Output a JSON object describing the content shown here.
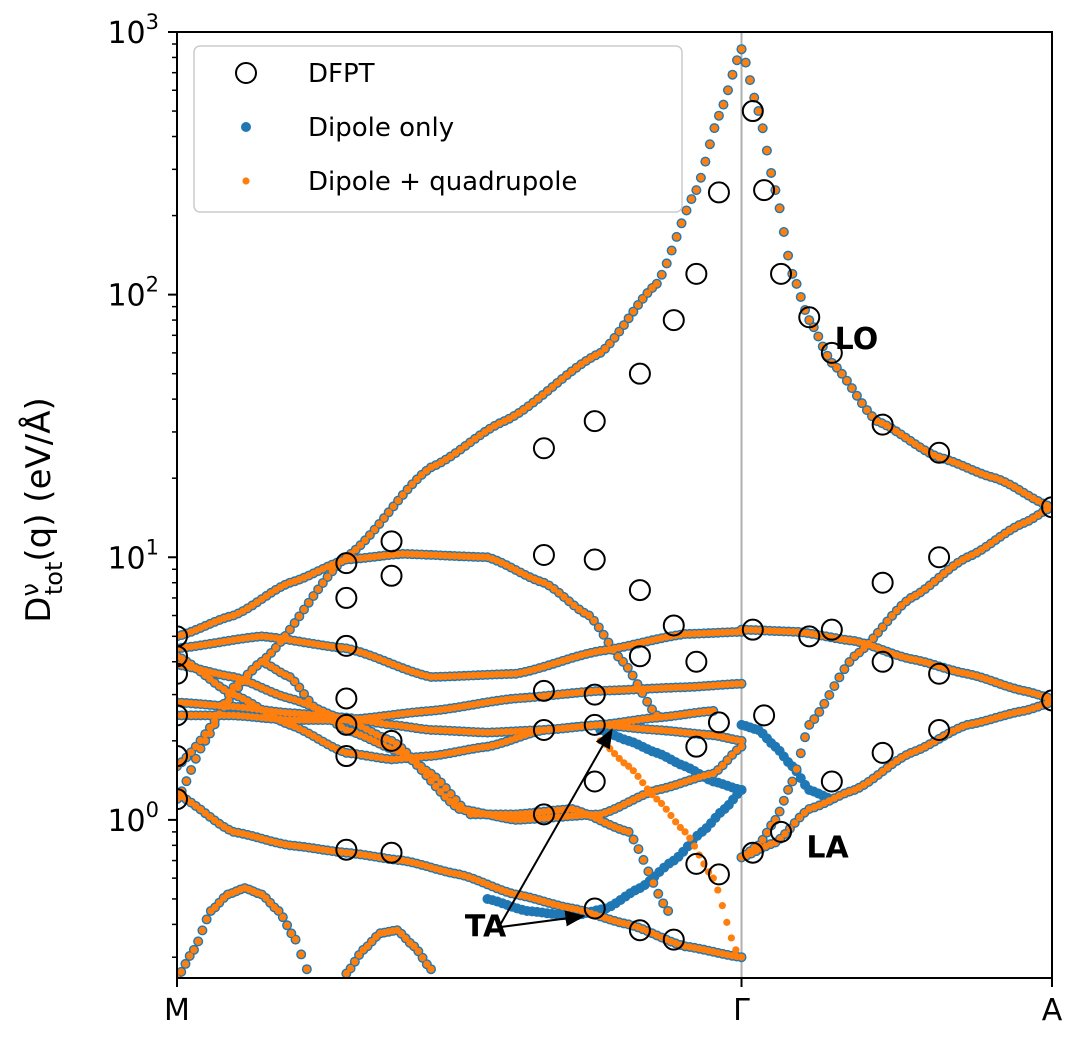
{
  "chart_data": {
    "type": "scatter",
    "ylabel": "D^ν_tot(q) (eV/Å)",
    "ylabel_parts": {
      "base": "D",
      "sup": "ν",
      "sub": "tot",
      "rest": "(q) (eV/Å)"
    },
    "yscale": "log",
    "ylim": [
      0.25,
      1000
    ],
    "xlim": [
      0,
      1.55
    ],
    "x_ticks": [
      {
        "value": 0,
        "label": "M"
      },
      {
        "value": 1.0,
        "label": "Γ"
      },
      {
        "value": 1.55,
        "label": "A"
      }
    ],
    "y_ticks": [
      {
        "value": 1,
        "base": "10",
        "exp": "0"
      },
      {
        "value": 10,
        "base": "10",
        "exp": "1"
      },
      {
        "value": 100,
        "base": "10",
        "exp": "2"
      },
      {
        "value": 1000,
        "base": "10",
        "exp": "3"
      }
    ],
    "vline_x": 1.0,
    "legend": [
      {
        "name": "DFPT",
        "marker": "open-circle",
        "color": "#000000"
      },
      {
        "name": "Dipole only",
        "marker": "dot",
        "color": "#1f77b4"
      },
      {
        "name": "Dipole + quadrupole",
        "marker": "dot",
        "color": "#ff7f0e"
      }
    ],
    "annotations": [
      {
        "text": "LO",
        "x": 1.165,
        "y": 62
      },
      {
        "text": "LA",
        "x": 1.115,
        "y": 0.72
      },
      {
        "text": "TA",
        "x": 0.51,
        "y": 0.36
      }
    ],
    "ta_arrow": {
      "from": [
        0.57,
        0.39
      ],
      "to_a": [
        0.77,
        2.2
      ],
      "to_b": [
        0.72,
        0.43
      ]
    },
    "branches": [
      {
        "name": "LO-MG",
        "x": [
          0.0,
          0.15,
          0.3,
          0.45,
          0.58,
          0.75,
          0.85,
          0.92,
          0.96,
          1.0
        ],
        "y": [
          1.6,
          4.0,
          10.0,
          22.0,
          33.0,
          60.0,
          110.0,
          250.0,
          480.0,
          860.0
        ]
      },
      {
        "name": "LO-GA",
        "x": [
          1.0,
          1.03,
          1.06,
          1.09,
          1.12,
          1.16,
          1.24,
          1.35,
          1.45,
          1.55
        ],
        "y": [
          860.0,
          500.0,
          250.0,
          120.0,
          80.0,
          55.0,
          33.0,
          24.0,
          20.0,
          15.5
        ]
      },
      {
        "name": "MG-b2",
        "x": [
          0.0,
          0.1,
          0.2,
          0.3,
          0.4,
          0.55,
          0.65,
          0.73,
          0.79,
          0.85
        ],
        "y": [
          5.0,
          6.0,
          8.0,
          9.8,
          10.3,
          10.0,
          8.0,
          6.0,
          4.0,
          2.5
        ]
      },
      {
        "name": "MG-b3",
        "x": [
          0.0,
          0.15,
          0.3,
          0.45,
          0.6,
          0.75,
          0.9,
          1.0
        ],
        "y": [
          4.5,
          5.0,
          4.5,
          3.5,
          3.6,
          4.4,
          5.1,
          5.2
        ]
      },
      {
        "name": "MG-b4",
        "x": [
          0.0,
          0.1,
          0.2,
          0.3,
          0.45,
          0.6,
          0.75,
          0.9,
          1.0
        ],
        "y": [
          2.5,
          2.5,
          2.4,
          2.4,
          2.6,
          2.9,
          3.1,
          3.2,
          3.3
        ]
      },
      {
        "name": "MG-b5",
        "x": [
          0.0,
          0.1,
          0.2,
          0.3,
          0.38,
          0.45,
          0.52,
          0.6,
          0.7,
          0.8,
          0.87
        ],
        "y": [
          3.9,
          3.5,
          2.9,
          2.4,
          2.0,
          1.5,
          1.05,
          1.05,
          1.1,
          0.9,
          0.45
        ]
      },
      {
        "name": "MG-b6",
        "x": [
          0.0,
          0.1,
          0.2,
          0.3,
          0.38,
          0.45,
          0.55,
          0.65,
          0.75,
          0.85,
          0.95,
          1.0
        ],
        "y": [
          4.2,
          3.0,
          2.3,
          1.8,
          1.7,
          1.75,
          1.9,
          2.2,
          2.3,
          2.2,
          2.1,
          2.0
        ]
      },
      {
        "name": "MG-b7",
        "x": [
          0.0,
          0.05,
          0.1,
          0.15,
          0.2,
          0.25,
          0.3,
          0.4,
          0.5,
          0.6,
          0.75,
          0.85,
          0.95,
          1.0
        ],
        "y": [
          1.2,
          2.0,
          3.2,
          4.0,
          3.5,
          2.6,
          2.2,
          1.8,
          1.1,
          1.0,
          1.05,
          1.3,
          1.5,
          1.9
        ]
      },
      {
        "name": "MG-b8",
        "x": [
          0.0,
          0.1,
          0.2,
          0.3,
          0.4,
          0.5,
          0.6,
          0.7,
          0.8,
          0.9,
          1.0
        ],
        "y": [
          1.25,
          0.9,
          0.8,
          0.75,
          0.7,
          0.62,
          0.52,
          0.46,
          0.4,
          0.33,
          0.3
        ]
      },
      {
        "name": "MG-b9",
        "x": [
          0.0,
          0.1,
          0.2,
          0.3,
          0.38,
          0.45,
          0.55,
          0.65,
          0.75,
          0.85,
          0.95
        ],
        "y": [
          2.8,
          2.7,
          2.55,
          2.45,
          2.3,
          2.2,
          2.15,
          2.2,
          2.3,
          2.45,
          2.6
        ]
      },
      {
        "name": "GA-b1",
        "x": [
          1.0,
          1.1,
          1.2,
          1.3,
          1.4,
          1.5,
          1.55
        ],
        "y": [
          5.3,
          5.2,
          4.8,
          4.1,
          3.6,
          3.1,
          2.9
        ]
      },
      {
        "name": "GA-b2",
        "x": [
          1.0,
          1.03,
          1.06,
          1.09,
          1.12,
          1.2,
          1.3,
          1.4,
          1.5,
          1.55
        ],
        "y": [
          0.72,
          0.8,
          1.0,
          1.4,
          2.3,
          4.2,
          7.0,
          10.0,
          13.5,
          15.5
        ]
      },
      {
        "name": "GA-b3",
        "x": [
          1.0,
          1.06,
          1.12,
          1.2,
          1.3,
          1.4,
          1.5,
          1.55
        ],
        "y": [
          0.72,
          0.82,
          1.1,
          1.3,
          1.8,
          2.3,
          2.6,
          2.8
        ]
      },
      {
        "name": "low-arch",
        "x": [
          0.0,
          0.03,
          0.06,
          0.09,
          0.12,
          0.15,
          0.18,
          0.21,
          0.23
        ],
        "y": [
          0.25,
          0.32,
          0.45,
          0.52,
          0.55,
          0.52,
          0.45,
          0.35,
          0.27
        ]
      },
      {
        "name": "low-arch2",
        "x": [
          0.3,
          0.33,
          0.36,
          0.39,
          0.42,
          0.45
        ],
        "y": [
          0.26,
          0.32,
          0.37,
          0.38,
          0.33,
          0.27
        ]
      }
    ],
    "dipole_only_divergent": [
      {
        "name": "TA-blue",
        "x": [
          0.55,
          0.62,
          0.7,
          0.76,
          0.82,
          0.88,
          0.93,
          0.97,
          1.0
        ],
        "y": [
          0.5,
          0.45,
          0.43,
          0.46,
          0.55,
          0.7,
          0.9,
          1.1,
          1.3
        ]
      },
      {
        "name": "TA-blue2",
        "x": [
          0.75,
          0.8,
          0.85,
          0.9,
          0.95,
          1.0
        ],
        "y": [
          2.2,
          2.0,
          1.8,
          1.6,
          1.4,
          1.3
        ]
      },
      {
        "name": "LA-blue",
        "x": [
          1.0,
          1.03,
          1.06,
          1.09,
          1.12,
          1.16
        ],
        "y": [
          2.3,
          2.2,
          1.9,
          1.6,
          1.3,
          1.2
        ]
      }
    ],
    "quadrupole_divergent": [
      {
        "name": "TA-orange",
        "x": [
          0.75,
          0.8,
          0.85,
          0.9,
          0.95,
          0.99
        ],
        "y": [
          2.0,
          1.6,
          1.2,
          0.9,
          0.6,
          0.32
        ]
      }
    ],
    "dfpt_points": [
      {
        "x": 0.0,
        "y": 5.0
      },
      {
        "x": 0.0,
        "y": 4.2
      },
      {
        "x": 0.0,
        "y": 3.6
      },
      {
        "x": 0.0,
        "y": 2.5
      },
      {
        "x": 0.0,
        "y": 1.75
      },
      {
        "x": 0.0,
        "y": 1.2
      },
      {
        "x": 0.3,
        "y": 9.5
      },
      {
        "x": 0.3,
        "y": 7.0
      },
      {
        "x": 0.3,
        "y": 4.6
      },
      {
        "x": 0.3,
        "y": 2.9
      },
      {
        "x": 0.3,
        "y": 2.3
      },
      {
        "x": 0.3,
        "y": 1.75
      },
      {
        "x": 0.3,
        "y": 0.77
      },
      {
        "x": 0.38,
        "y": 11.5
      },
      {
        "x": 0.38,
        "y": 8.5
      },
      {
        "x": 0.38,
        "y": 2.0
      },
      {
        "x": 0.38,
        "y": 0.75
      },
      {
        "x": 0.65,
        "y": 26.0
      },
      {
        "x": 0.65,
        "y": 10.2
      },
      {
        "x": 0.65,
        "y": 3.1
      },
      {
        "x": 0.65,
        "y": 2.2
      },
      {
        "x": 0.65,
        "y": 1.05
      },
      {
        "x": 0.74,
        "y": 33.0
      },
      {
        "x": 0.74,
        "y": 9.8
      },
      {
        "x": 0.74,
        "y": 3.0
      },
      {
        "x": 0.74,
        "y": 2.3
      },
      {
        "x": 0.74,
        "y": 1.4
      },
      {
        "x": 0.74,
        "y": 0.46
      },
      {
        "x": 0.82,
        "y": 50.0
      },
      {
        "x": 0.82,
        "y": 7.5
      },
      {
        "x": 0.82,
        "y": 4.2
      },
      {
        "x": 0.82,
        "y": 0.38
      },
      {
        "x": 0.88,
        "y": 80.0
      },
      {
        "x": 0.88,
        "y": 5.5
      },
      {
        "x": 0.88,
        "y": 0.35
      },
      {
        "x": 0.92,
        "y": 120.0
      },
      {
        "x": 0.92,
        "y": 4.0
      },
      {
        "x": 0.92,
        "y": 1.9
      },
      {
        "x": 0.92,
        "y": 0.68
      },
      {
        "x": 0.96,
        "y": 245.0
      },
      {
        "x": 0.96,
        "y": 2.35
      },
      {
        "x": 0.96,
        "y": 0.62
      },
      {
        "x": 1.02,
        "y": 500.0
      },
      {
        "x": 1.02,
        "y": 5.3
      },
      {
        "x": 1.02,
        "y": 0.75
      },
      {
        "x": 1.04,
        "y": 250.0
      },
      {
        "x": 1.04,
        "y": 2.5
      },
      {
        "x": 1.07,
        "y": 120.0
      },
      {
        "x": 1.07,
        "y": 0.9
      },
      {
        "x": 1.12,
        "y": 82.0
      },
      {
        "x": 1.12,
        "y": 5.0
      },
      {
        "x": 1.16,
        "y": 60.0
      },
      {
        "x": 1.16,
        "y": 5.3
      },
      {
        "x": 1.16,
        "y": 1.4
      },
      {
        "x": 1.25,
        "y": 32.0
      },
      {
        "x": 1.25,
        "y": 8.0
      },
      {
        "x": 1.25,
        "y": 4.0
      },
      {
        "x": 1.25,
        "y": 1.8
      },
      {
        "x": 1.35,
        "y": 25.0
      },
      {
        "x": 1.35,
        "y": 10.0
      },
      {
        "x": 1.35,
        "y": 3.6
      },
      {
        "x": 1.35,
        "y": 2.2
      },
      {
        "x": 1.55,
        "y": 15.5
      },
      {
        "x": 1.55,
        "y": 2.85
      }
    ]
  }
}
